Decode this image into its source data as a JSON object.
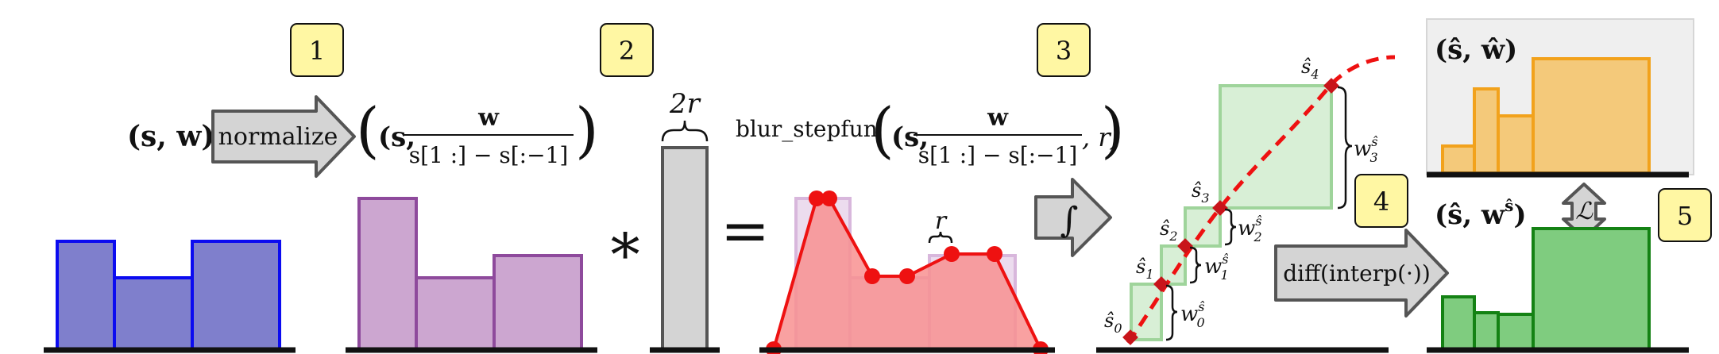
{
  "steps": [
    {
      "number": "1"
    },
    {
      "number": "2"
    },
    {
      "number": "3"
    },
    {
      "number": "4"
    },
    {
      "number": "5"
    }
  ],
  "stage1": {
    "input_label": "(s, w)",
    "arrow_label": "normalize",
    "output_label_prefix": "(s,",
    "output_frac_num": "w",
    "output_frac_den": "s[1 :] − s[:−1]",
    "output_label_suffix": ")"
  },
  "stage2": {
    "kernel_label": "2r",
    "convolve_symbol": "∗",
    "equals_symbol": "=",
    "blur_fn_label": "blur_stepfun",
    "blur_args_prefix": "(s,",
    "blur_frac_num": "w",
    "blur_frac_den": "s[1 :] − s[:−1]",
    "blur_args_suffix": ", r)",
    "radius_label": "r"
  },
  "stage3": {
    "integral_symbol": "∫",
    "points": [
      "ŝ0",
      "ŝ1",
      "ŝ2",
      "ŝ3",
      "ŝ4"
    ],
    "point_labels": [
      {
        "base": "ŝ",
        "sub": "0"
      },
      {
        "base": "ŝ",
        "sub": "1"
      },
      {
        "base": "ŝ",
        "sub": "2"
      },
      {
        "base": "ŝ",
        "sub": "3"
      },
      {
        "base": "ŝ",
        "sub": "4"
      }
    ],
    "weight_labels": [
      {
        "base": "w",
        "sub": "0",
        "sup": "ŝ"
      },
      {
        "base": "w",
        "sub": "1",
        "sup": "ŝ"
      },
      {
        "base": "w",
        "sub": "2",
        "sup": "ŝ"
      },
      {
        "base": "w",
        "sub": "3",
        "sup": "ŝ"
      }
    ]
  },
  "stage4": {
    "arrow_label": "diff(interp(·))"
  },
  "stage5": {
    "target_label": "(ŝ, ŵ)",
    "result_label_base": "(ŝ, w",
    "result_label_sup": "ŝ",
    "result_label_suffix": ")",
    "loss_symbol": "ℒ"
  },
  "colors": {
    "blue_fill": "#7f7fcc",
    "blue_stroke": "#0b0bf0",
    "purple_fill": "#cca6d0",
    "purple_stroke": "#8e4a9c",
    "red_fill": "#f89191",
    "red_stroke": "#ee1111",
    "green_light_fill": "#d8efd6",
    "green_light_stroke": "#9fd49b",
    "orange_fill": "#f4c97a",
    "orange_stroke": "#f2a21c",
    "green_fill": "#7fcc7f",
    "green_stroke": "#148214",
    "box_yellow": "#fff7a3",
    "gray_fill": "#d4d4d4",
    "gray_stroke": "#555555"
  }
}
